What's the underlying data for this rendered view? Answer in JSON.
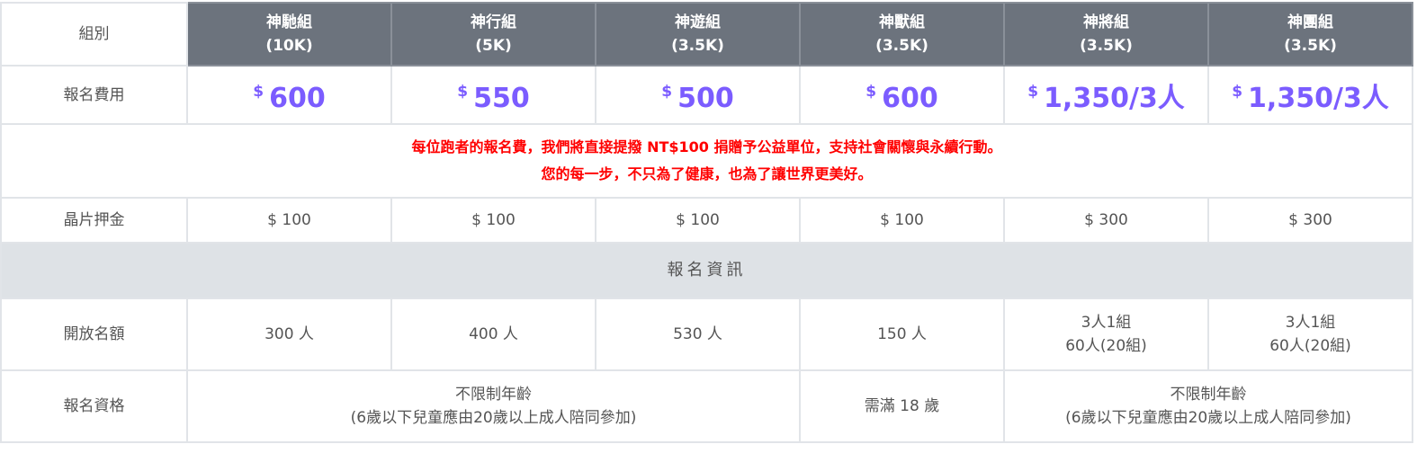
{
  "header": {
    "row_label": "組別",
    "groups": [
      {
        "name": "神馳組",
        "distance": "(10K)"
      },
      {
        "name": "神行組",
        "distance": "(5K)"
      },
      {
        "name": "神遊組",
        "distance": "(3.5K)"
      },
      {
        "name": "神獸組",
        "distance": "(3.5K)"
      },
      {
        "name": "神將組",
        "distance": "(3.5K)"
      },
      {
        "name": "神團組",
        "distance": "(3.5K)"
      }
    ]
  },
  "fee": {
    "label": "報名費用",
    "currency": "$",
    "values": [
      "600",
      "550",
      "500",
      "600",
      "1,350/3人",
      "1,350/3人"
    ]
  },
  "notice": {
    "line1": "每位跑者的報名費，我們將直接提撥 NT$100 捐贈予公益單位，支持社會關懷與永續行動。",
    "line2": "您的每一步，不只為了健康，也為了讓世界更美好。"
  },
  "deposit": {
    "label": "晶片押金",
    "values": [
      "$ 100",
      "$ 100",
      "$ 100",
      "$ 100",
      "$ 300",
      "$ 300"
    ]
  },
  "section": {
    "title": "報名資訊"
  },
  "quota": {
    "label": "開放名額",
    "values": [
      {
        "line1": "300 人",
        "line2": ""
      },
      {
        "line1": "400 人",
        "line2": ""
      },
      {
        "line1": "530 人",
        "line2": ""
      },
      {
        "line1": "150 人",
        "line2": ""
      },
      {
        "line1": "3人1組",
        "line2": "60人(20組)"
      },
      {
        "line1": "3人1組",
        "line2": "60人(20組)"
      }
    ]
  },
  "eligibility": {
    "label": "報名資格",
    "left": {
      "line1": "不限制年齡",
      "line2": "(6歲以下兒童應由20歲以上成人陪同參加)"
    },
    "middle": "需滿 18 歲",
    "right": {
      "line1": "不限制年齡",
      "line2": "(6歲以下兒童應由20歲以上成人陪同參加)"
    }
  },
  "colors": {
    "header_bg": "#6c737d",
    "fee": "#7b5cff",
    "notice": "#ff0000",
    "section_bg": "#dee2e6",
    "border": "#e1e4e8"
  }
}
